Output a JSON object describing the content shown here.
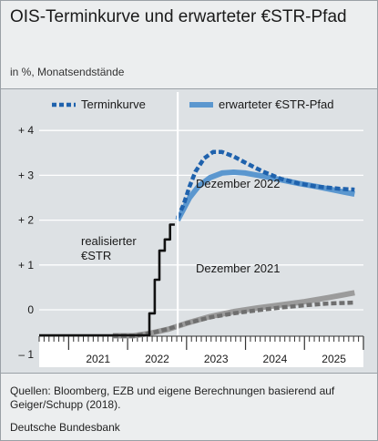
{
  "header": {
    "title": "OIS-Terminkurve und erwarteter €STR-Pfad",
    "subtitle": "in %, Monatsendstände"
  },
  "footer": {
    "sources": "Quellen: Bloomberg, EZB und eigene Berechnungen basierend auf Geiger/Schupp (2018).",
    "credit": "Deutsche Bundesbank"
  },
  "colors": {
    "forward_curve": "#1f62ad",
    "expected_path": "#5b97cf",
    "realized": "#111111",
    "dec2021_forward": "#6f6f6f",
    "dec2021_expected": "#9b9b9b",
    "panel": "#dde1e4"
  },
  "chart_data": {
    "type": "line",
    "title": "OIS-Terminkurve und erwarteter €STR-Pfad",
    "subtitle": "in %, Monatsendstände",
    "xlim": [
      2020.5,
      2026.0
    ],
    "ylim": [
      -0.8,
      4.2
    ],
    "y_ticks": [
      -1,
      0,
      1,
      2,
      3,
      4
    ],
    "y_tick_labels": [
      "– 1",
      "0",
      "+ 1",
      "+ 2",
      "+ 3",
      "+ 4"
    ],
    "x_tick_labels": [
      "2021",
      "2022",
      "2023",
      "2024",
      "2025"
    ],
    "x_tick_positions": [
      2021.0,
      2022.0,
      2023.0,
      2024.0,
      2025.0
    ],
    "grid": true,
    "legend": {
      "placement": "top",
      "entries": [
        {
          "label": "Terminkurve",
          "style": "dashed"
        },
        {
          "label": "erwarteter €STR-Pfad",
          "style": "solid"
        }
      ]
    },
    "annotations": {
      "realized": "realisierter €STR",
      "dec2022": "Dezember 2022",
      "dec2021": "Dezember 2021"
    },
    "series": [
      {
        "name": "realisierter €STR",
        "color": "#111111",
        "style": "step",
        "points": [
          [
            2020.5,
            -0.57
          ],
          [
            2022.37,
            -0.57
          ],
          [
            2022.37,
            -0.08
          ],
          [
            2022.46,
            -0.08
          ],
          [
            2022.46,
            0.67
          ],
          [
            2022.54,
            0.67
          ],
          [
            2022.54,
            1.32
          ],
          [
            2022.63,
            1.32
          ],
          [
            2022.63,
            1.57
          ],
          [
            2022.72,
            1.57
          ],
          [
            2022.72,
            1.9
          ],
          [
            2022.8,
            1.9
          ]
        ]
      },
      {
        "name": "Terminkurve",
        "group": "Dezember 2022",
        "color": "#1f62ad",
        "style": "dashed",
        "points": [
          [
            2022.85,
            2.05
          ],
          [
            2022.95,
            2.35
          ],
          [
            2023.05,
            2.75
          ],
          [
            2023.15,
            3.08
          ],
          [
            2023.3,
            3.38
          ],
          [
            2023.45,
            3.52
          ],
          [
            2023.6,
            3.52
          ],
          [
            2023.8,
            3.42
          ],
          [
            2024.0,
            3.28
          ],
          [
            2024.3,
            3.08
          ],
          [
            2024.6,
            2.92
          ],
          [
            2024.9,
            2.82
          ],
          [
            2025.2,
            2.75
          ],
          [
            2025.6,
            2.7
          ],
          [
            2025.85,
            2.68
          ]
        ]
      },
      {
        "name": "erwarteter €STR-Pfad",
        "group": "Dezember 2022",
        "color": "#5b97cf",
        "style": "solid",
        "points": [
          [
            2022.85,
            2.0
          ],
          [
            2022.95,
            2.25
          ],
          [
            2023.05,
            2.5
          ],
          [
            2023.2,
            2.75
          ],
          [
            2023.4,
            2.95
          ],
          [
            2023.6,
            3.05
          ],
          [
            2023.8,
            3.07
          ],
          [
            2024.0,
            3.05
          ],
          [
            2024.3,
            2.98
          ],
          [
            2024.6,
            2.9
          ],
          [
            2024.9,
            2.82
          ],
          [
            2025.2,
            2.75
          ],
          [
            2025.5,
            2.67
          ],
          [
            2025.85,
            2.58
          ]
        ]
      },
      {
        "name": "Terminkurve",
        "group": "Dezember 2021",
        "color": "#6f6f6f",
        "style": "dashed",
        "points": [
          [
            2021.75,
            -0.58
          ],
          [
            2022.1,
            -0.58
          ],
          [
            2022.4,
            -0.52
          ],
          [
            2022.7,
            -0.42
          ],
          [
            2023.0,
            -0.3
          ],
          [
            2023.4,
            -0.17
          ],
          [
            2023.8,
            -0.08
          ],
          [
            2024.2,
            -0.01
          ],
          [
            2024.6,
            0.05
          ],
          [
            2025.0,
            0.1
          ],
          [
            2025.4,
            0.14
          ],
          [
            2025.85,
            0.16
          ]
        ]
      },
      {
        "name": "erwarteter €STR-Pfad",
        "group": "Dezember 2021",
        "color": "#9b9b9b",
        "style": "solid",
        "points": [
          [
            2021.75,
            -0.58
          ],
          [
            2022.1,
            -0.58
          ],
          [
            2022.4,
            -0.52
          ],
          [
            2022.7,
            -0.43
          ],
          [
            2023.0,
            -0.3
          ],
          [
            2023.4,
            -0.15
          ],
          [
            2023.8,
            -0.04
          ],
          [
            2024.2,
            0.04
          ],
          [
            2024.6,
            0.11
          ],
          [
            2025.0,
            0.18
          ],
          [
            2025.4,
            0.27
          ],
          [
            2025.85,
            0.38
          ]
        ]
      }
    ]
  }
}
